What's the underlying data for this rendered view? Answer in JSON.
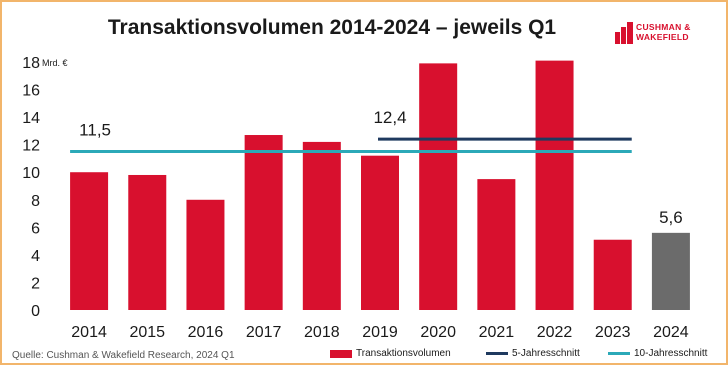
{
  "title": "Transaktionsvolumen 2014-2024 – jeweils Q1",
  "logo": {
    "line1": "CUSHMAN &",
    "line2": "WAKEFIELD"
  },
  "source": "Quelle: Cushman & Wakefield Research, 2024 Q1",
  "colors": {
    "bar": "#d8102e",
    "bar_highlight": "#6b6b6b",
    "avg5": "#1f3a5f",
    "avg10": "#2ba9b8",
    "brand": "#d8102e"
  },
  "chart_data": {
    "type": "bar",
    "title": "Transaktionsvolumen 2014-2024 – jeweils Q1",
    "ylabel": "Mrd. €",
    "xlabel": "",
    "ylim": [
      0,
      18
    ],
    "yticks": [
      0,
      2,
      4,
      6,
      8,
      10,
      12,
      14,
      16,
      18
    ],
    "categories": [
      "2014",
      "2015",
      "2016",
      "2017",
      "2018",
      "2019",
      "2020",
      "2021",
      "2022",
      "2023",
      "2024"
    ],
    "series": [
      {
        "name": "Transaktionsvolumen",
        "values": [
          10.0,
          9.8,
          8.0,
          12.7,
          12.2,
          11.2,
          17.9,
          9.5,
          18.1,
          5.1,
          5.6
        ]
      },
      {
        "name": "5-Jahresschnitt",
        "value": 12.4,
        "from": "2019",
        "to": "2023"
      },
      {
        "name": "10-Jahresschnitt",
        "value": 11.5,
        "from": "2014",
        "to": "2023"
      }
    ],
    "data_labels": [
      {
        "text": "11,5",
        "series": "10-Jahresschnitt"
      },
      {
        "text": "12,4",
        "series": "5-Jahresschnitt"
      },
      {
        "text": "5,6",
        "category": "2024"
      }
    ],
    "legend": "bottom",
    "grid": false
  }
}
